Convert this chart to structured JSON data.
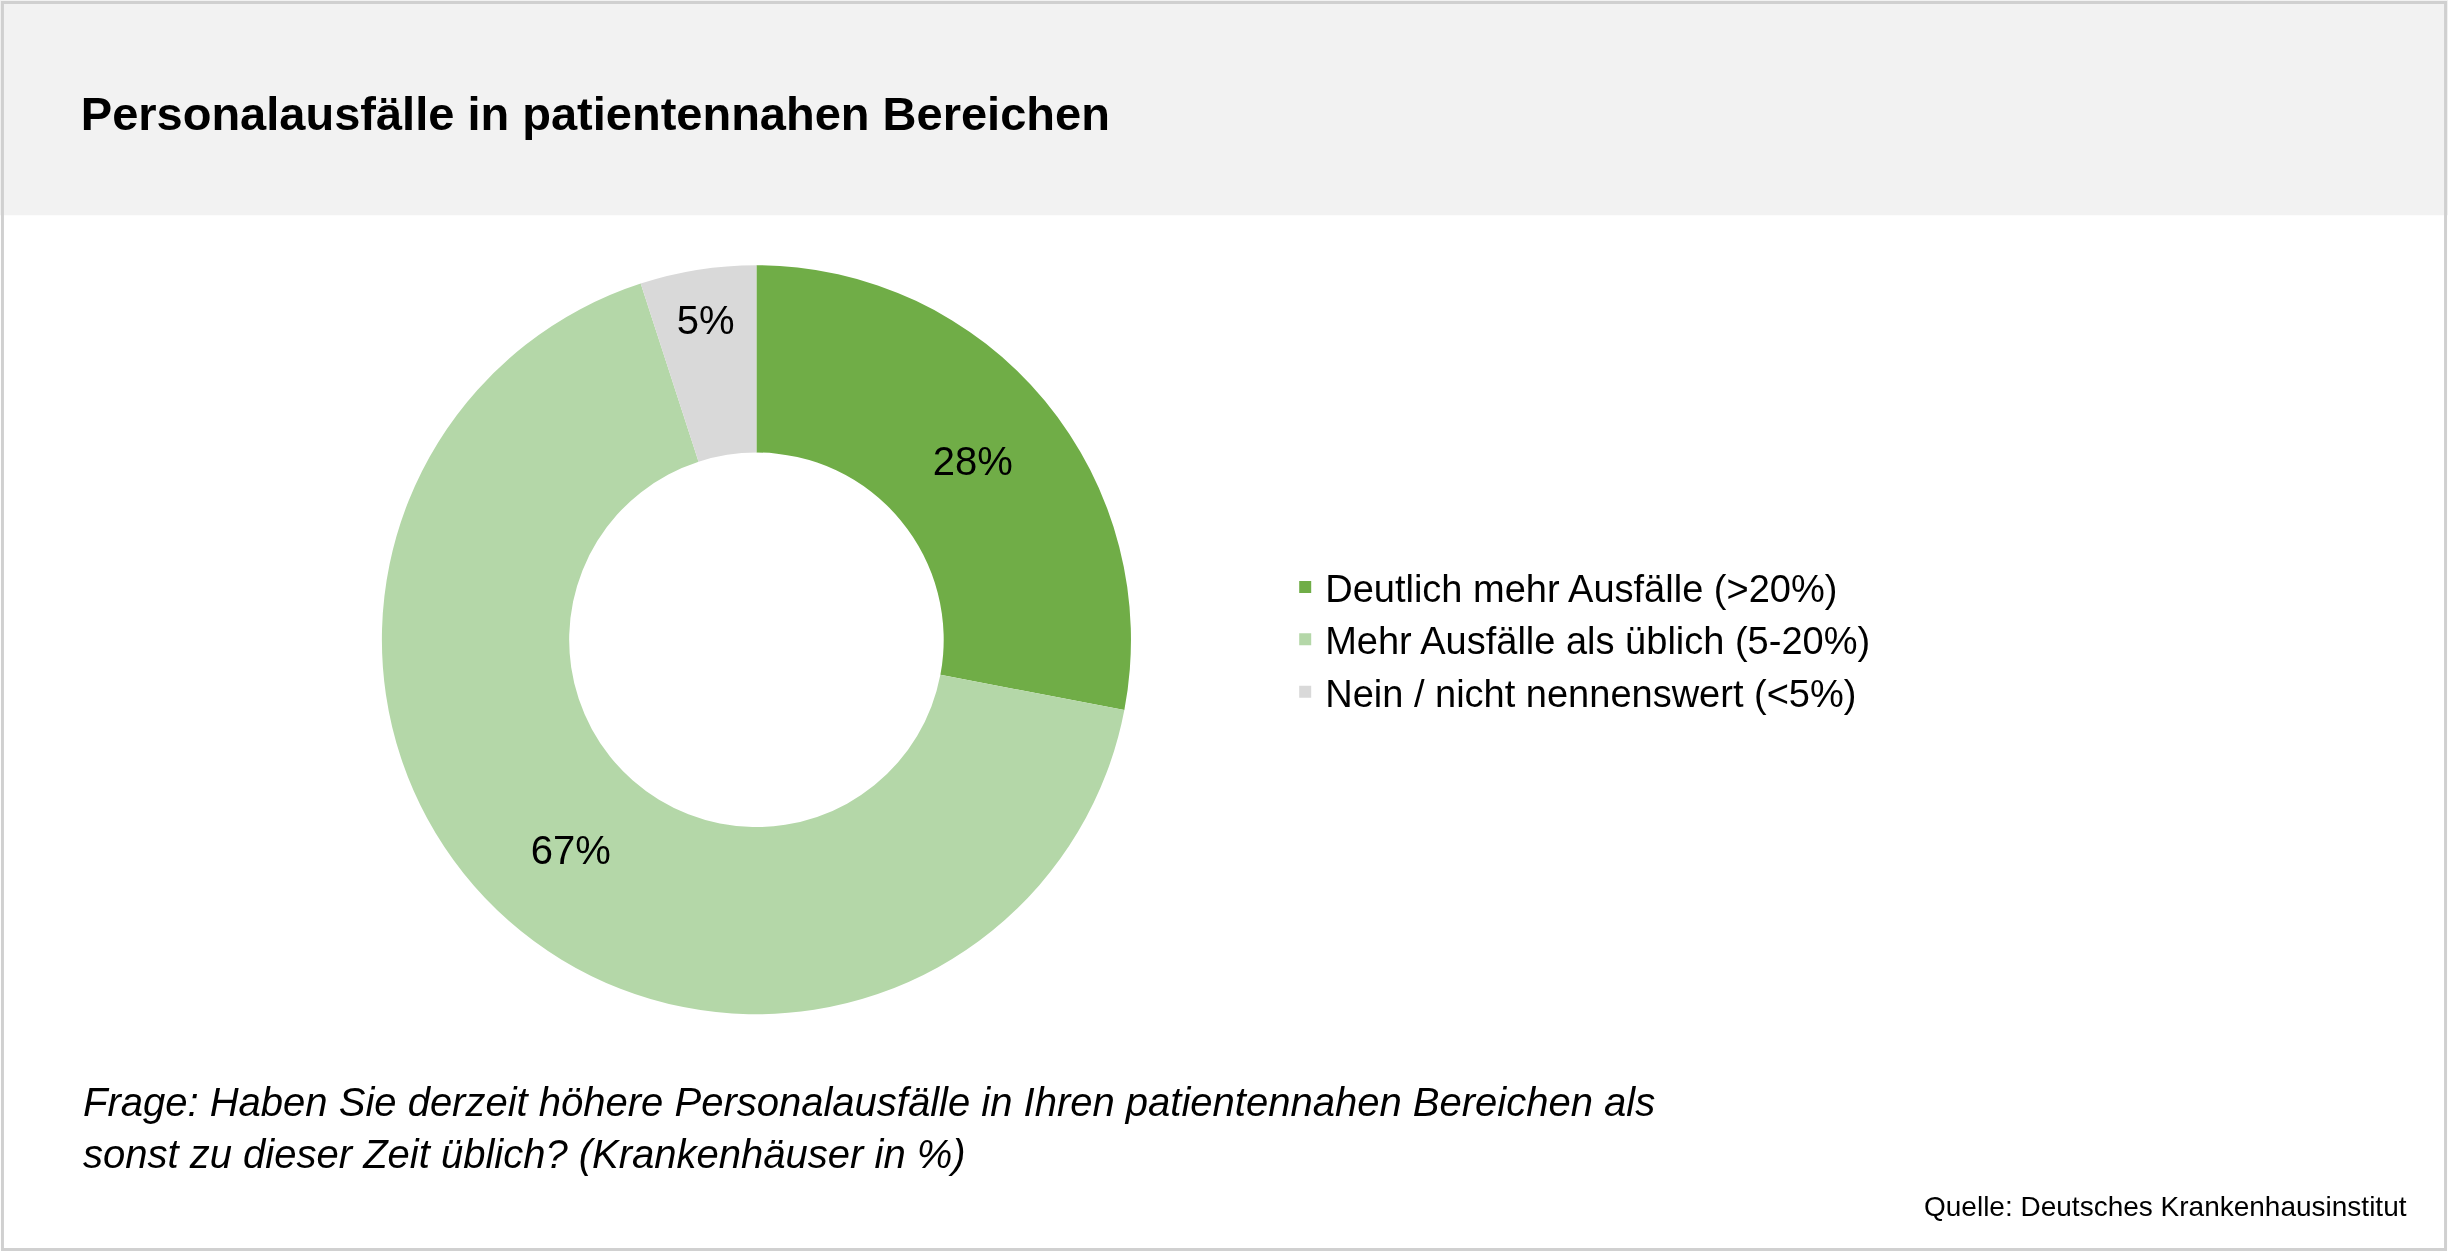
{
  "chart_data": {
    "type": "donut",
    "title": "Personalausfälle in patientennahen Bereichen",
    "categories": [
      "Deutlich mehr Ausfälle (>20%)",
      "Mehr Ausfälle als üblich (5-20%)",
      "Nein / nicht nennenswert (<5%)"
    ],
    "values": [
      28,
      67,
      5
    ],
    "colors": [
      "#70ad47",
      "#b4d7a8",
      "#d9d9d9"
    ],
    "value_labels": [
      "28%",
      "67%",
      "5%"
    ],
    "legend": "right",
    "annotations": [
      "Frage: Haben Sie derzeit höhere Personalausfälle in Ihren patientennahen Bereichen als sonst zu dieser Zeit üblich? (Krankenhäuser in %)",
      "Quelle: Deutsches Krankenhausinstitut"
    ]
  }
}
